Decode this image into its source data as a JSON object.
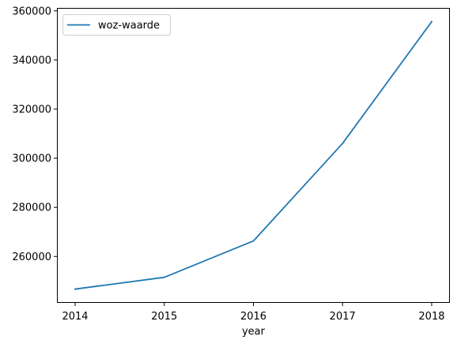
{
  "chart_data": {
    "type": "line",
    "x": [
      2014,
      2015,
      2016,
      2017,
      2018
    ],
    "series": [
      {
        "name": "woz-waarde",
        "values": [
          246700,
          251500,
          266300,
          306000,
          355600
        ],
        "color": "#1f77b4"
      }
    ],
    "title": "",
    "xlabel": "year",
    "ylabel": "",
    "xlim": [
      2013.8,
      2018.2
    ],
    "ylim": [
      241250,
      361050
    ],
    "xticks": [
      2014,
      2015,
      2016,
      2017,
      2018
    ],
    "xtick_labels": [
      "2014",
      "2015",
      "2016",
      "2017",
      "2018"
    ],
    "yticks": [
      260000,
      280000,
      300000,
      320000,
      340000,
      360000
    ],
    "ytick_labels": [
      "260000",
      "280000",
      "300000",
      "320000",
      "340000",
      "360000"
    ],
    "grid": false,
    "legend_position": "top-left"
  }
}
